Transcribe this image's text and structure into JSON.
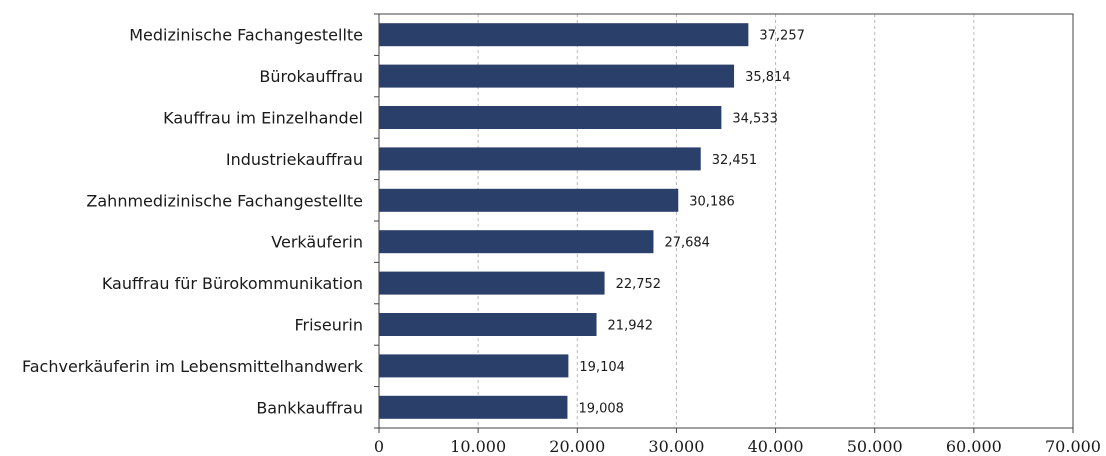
{
  "chart_data": {
    "type": "bar",
    "orientation": "horizontal",
    "categories": [
      "Medizinische Fachangestellte",
      "Bürokauffrau",
      "Kauffrau im Einzelhandel",
      "Industriekauffrau",
      "Zahnmedizinische Fachangestellte",
      "Verkäuferin",
      "Kauffrau für Bürokommunikation",
      "Friseurin",
      "Fachverkäuferin im Lebensmittelhandwerk",
      "Bankkauffrau"
    ],
    "values": [
      37257,
      35814,
      34533,
      32451,
      30186,
      27684,
      22752,
      21942,
      19104,
      19008
    ],
    "value_labels": [
      "37,257",
      "35,814",
      "34,533",
      "32,451",
      "30,186",
      "27,684",
      "22,752",
      "21,942",
      "19,104",
      "19,008"
    ],
    "title": "",
    "xlabel": "",
    "ylabel": "",
    "xlim": [
      0,
      70000
    ],
    "xticks": [
      0,
      10000,
      20000,
      30000,
      40000,
      50000,
      60000,
      70000
    ],
    "xtick_labels": [
      "0",
      "10.000",
      "20.000",
      "30.000",
      "40.000",
      "50.000",
      "60.000",
      "70.000"
    ],
    "grid": "vertical dashed",
    "bar_color": "#2b3f6b",
    "grid_color": "#b8b8b8",
    "axis_color": "#404040"
  }
}
